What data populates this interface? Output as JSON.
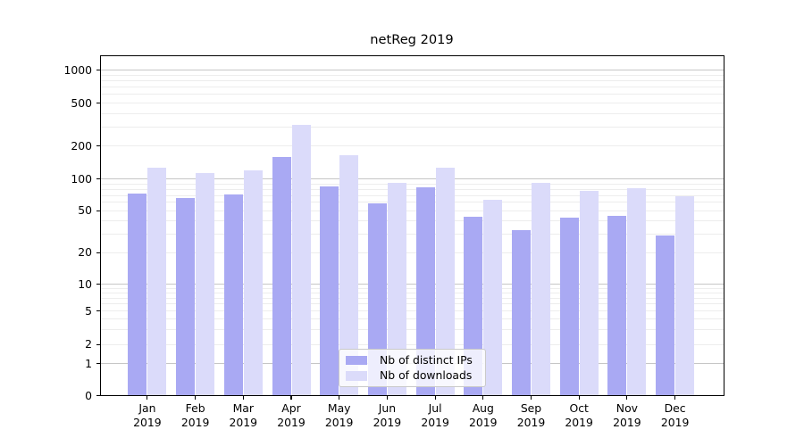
{
  "chart_data": {
    "type": "bar",
    "title": "netReg 2019",
    "categories": [
      "Jan",
      "Feb",
      "Mar",
      "Apr",
      "May",
      "Jun",
      "Jul",
      "Aug",
      "Sep",
      "Oct",
      "Nov",
      "Dec"
    ],
    "year_label": "2019",
    "series": [
      {
        "name": "Nb of distinct IPs",
        "color": "#a9a9f3",
        "values": [
          73,
          66,
          71,
          160,
          85,
          59,
          83,
          44,
          33,
          43,
          45,
          29
        ]
      },
      {
        "name": "Nb of downloads",
        "color": "#dbdbfa",
        "values": [
          127,
          114,
          120,
          315,
          165,
          92,
          126,
          64,
          92,
          78,
          82,
          69
        ]
      }
    ],
    "y_axis": {
      "scale": "symlog",
      "tick_labels": [
        "0",
        "1",
        "2",
        "5",
        "10",
        "20",
        "50",
        "100",
        "200",
        "500",
        "1000"
      ]
    },
    "ylim": [
      0,
      1350
    ],
    "grid": "horizontal, major decades darker, minor log steps lighter",
    "legend_position": "inside lower center"
  }
}
